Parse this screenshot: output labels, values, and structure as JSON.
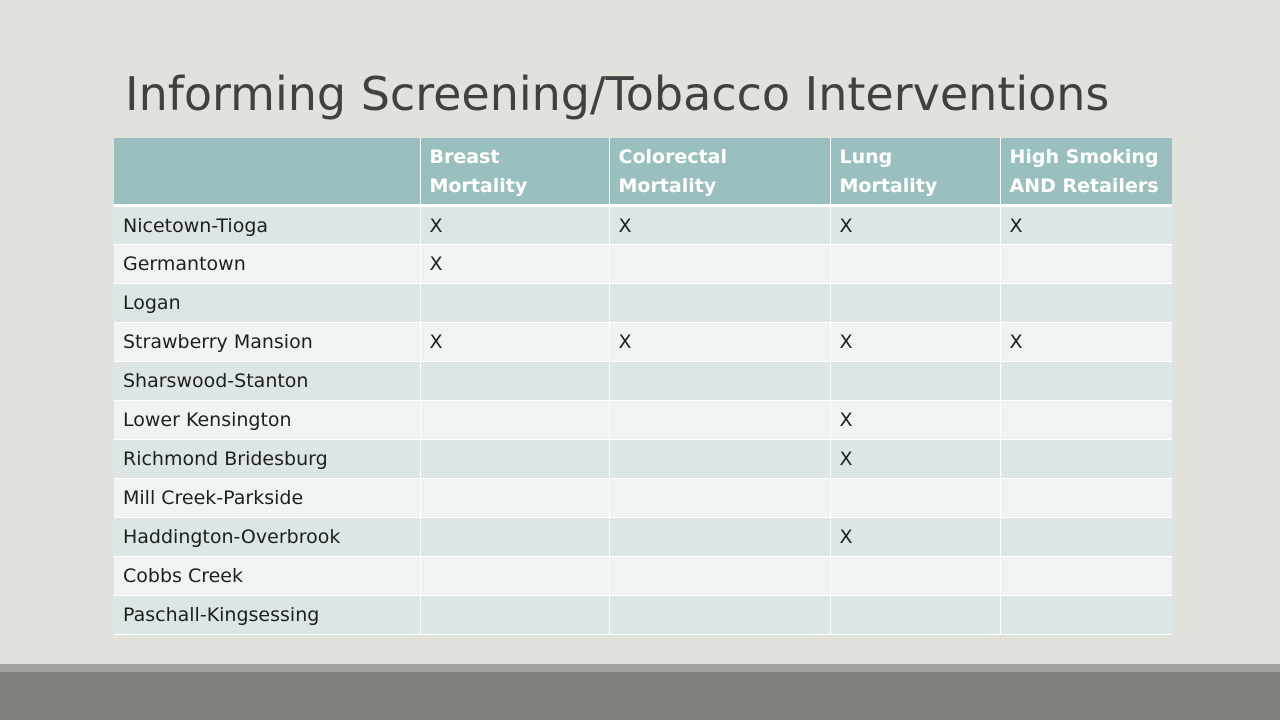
{
  "slide": {
    "title": "Informing Screening/Tobacco Interventions"
  },
  "table": {
    "headers": [
      "",
      "Breast Mortality",
      "Colorectal Mortality",
      "Lung Mortality",
      "High Smoking AND Retailers"
    ],
    "rows": [
      [
        "Nicetown-Tioga",
        "X",
        "X",
        "X",
        "X"
      ],
      [
        "Germantown",
        "X",
        "",
        "",
        ""
      ],
      [
        "Logan",
        "",
        "",
        "",
        ""
      ],
      [
        "Strawberry Mansion",
        "X",
        "X",
        "X",
        "X"
      ],
      [
        "Sharswood-Stanton",
        "",
        "",
        "",
        ""
      ],
      [
        "Lower Kensington",
        "",
        "",
        "X",
        ""
      ],
      [
        "Richmond Bridesburg",
        "",
        "",
        "X",
        ""
      ],
      [
        "Mill Creek-Parkside",
        "",
        "",
        "",
        ""
      ],
      [
        "Haddington-Overbrook",
        "",
        "",
        "X",
        ""
      ],
      [
        "Cobbs Creek",
        "",
        "",
        "",
        ""
      ],
      [
        "Paschall-Kingsessing",
        "",
        "",
        "",
        ""
      ]
    ]
  },
  "colors": {
    "background": "#e1e2dc",
    "header_fill": "#9abfbf",
    "row_odd": "#dde6e6",
    "row_even": "#eff3f3",
    "footer_bar": "#81827b"
  }
}
